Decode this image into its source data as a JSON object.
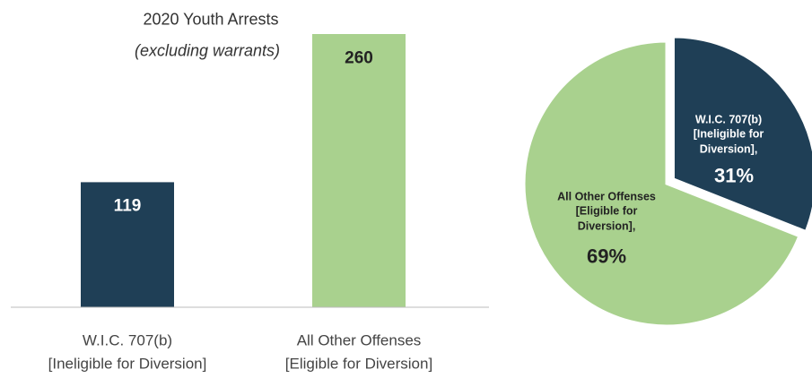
{
  "chart_data": [
    {
      "type": "bar",
      "title": "2020 Youth Arrests",
      "subtitle": "(excluding warrants)",
      "categories": [
        "W.I.C. 707(b)\n[Ineligible for Diversion]",
        "All Other Offenses\n[Eligible for Diversion]"
      ],
      "values": [
        119,
        260
      ],
      "colors": [
        "#1f3f56",
        "#a9d18e"
      ],
      "label_colors": [
        "#ffffff",
        "#222222"
      ]
    },
    {
      "type": "pie",
      "categories": [
        "W.I.C. 707(b)\n[Ineligible for\nDiversion],",
        "All Other Offenses\n[Eligible for\nDiversion],"
      ],
      "values": [
        31,
        69
      ],
      "value_labels": [
        "31%",
        "69%"
      ],
      "colors": [
        "#1f3f56",
        "#a9d18e"
      ],
      "label_colors": [
        "#ffffff",
        "#222222"
      ]
    }
  ]
}
